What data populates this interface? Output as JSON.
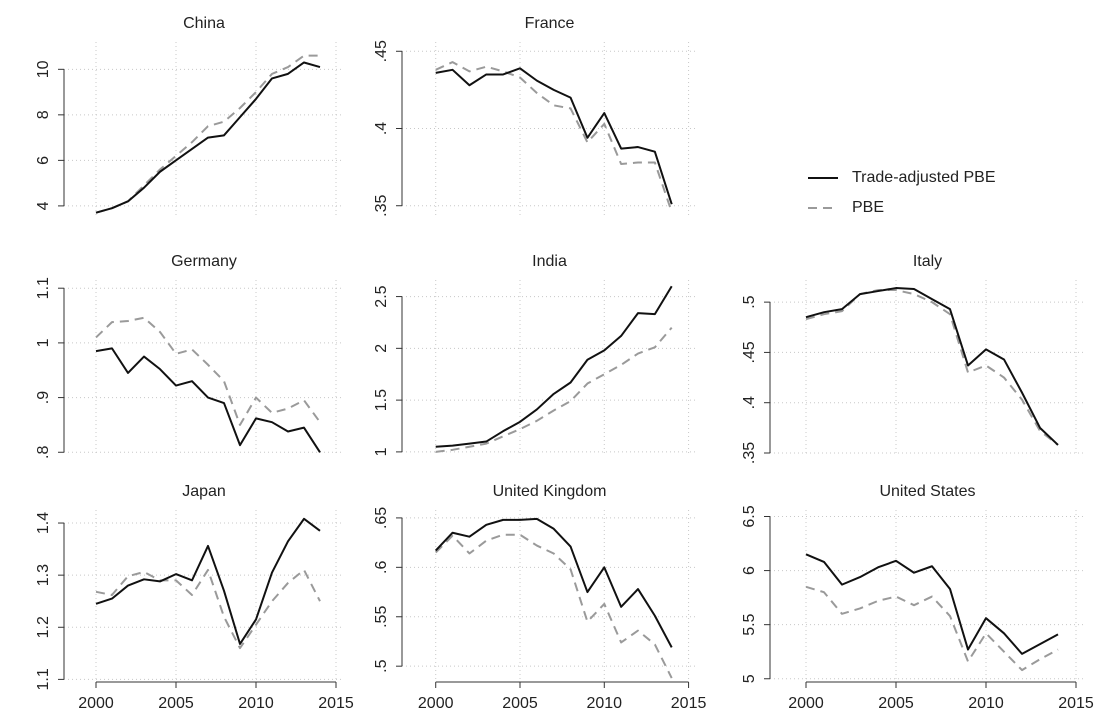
{
  "legend": {
    "entries": [
      {
        "name": "Trade-adjusted PBE",
        "color": "#111111",
        "dash": "none"
      },
      {
        "name": "PBE",
        "color": "#9a9a9a",
        "dash": "9 6"
      }
    ]
  },
  "chart_data": [
    {
      "type": "line",
      "title": "China",
      "x": [
        2000,
        2001,
        2002,
        2003,
        2004,
        2005,
        2006,
        2007,
        2008,
        2009,
        2010,
        2011,
        2012,
        2013,
        2014
      ],
      "xlim": [
        1998,
        2015.5
      ],
      "xticks": [
        2000,
        2005,
        2010,
        2015
      ],
      "ylim": [
        3.6,
        11.2
      ],
      "yticks": [
        4,
        6,
        8,
        10
      ],
      "grid": true,
      "series": [
        {
          "values": [
            3.7,
            3.9,
            4.2,
            4.8,
            5.5,
            6.0,
            6.5,
            7.0,
            7.1,
            7.9,
            8.7,
            9.6,
            9.8,
            10.3,
            10.1
          ]
        },
        {
          "values": [
            3.7,
            3.9,
            4.2,
            4.9,
            5.6,
            6.2,
            6.8,
            7.5,
            7.7,
            8.3,
            9.0,
            9.8,
            10.1,
            10.6,
            10.6
          ]
        }
      ]
    },
    {
      "type": "line",
      "title": "France",
      "x": [
        2000,
        2001,
        2002,
        2003,
        2004,
        2005,
        2006,
        2007,
        2008,
        2009,
        2010,
        2011,
        2012,
        2013,
        2014
      ],
      "xlim": [
        1998,
        2015.5
      ],
      "xticks": [
        2000,
        2005,
        2010,
        2015
      ],
      "ylim": [
        0.344,
        0.456
      ],
      "yticks": [
        {
          "value": 0.35,
          "label": ".35"
        },
        {
          "value": 0.4,
          "label": ".4"
        },
        {
          "value": 0.45,
          "label": ".45"
        }
      ],
      "grid": true,
      "series": [
        {
          "values": [
            0.436,
            0.438,
            0.428,
            0.435,
            0.435,
            0.439,
            0.431,
            0.425,
            0.42,
            0.394,
            0.41,
            0.387,
            0.388,
            0.385,
            0.351
          ]
        },
        {
          "values": [
            0.438,
            0.443,
            0.437,
            0.44,
            0.437,
            0.433,
            0.423,
            0.415,
            0.413,
            0.391,
            0.403,
            0.377,
            0.378,
            0.378,
            0.346
          ]
        }
      ]
    },
    {
      "type": "line",
      "title": "Germany",
      "x": [
        2000,
        2001,
        2002,
        2003,
        2004,
        2005,
        2006,
        2007,
        2008,
        2009,
        2010,
        2011,
        2012,
        2013,
        2014
      ],
      "xlim": [
        1998,
        2015.5
      ],
      "xticks": [
        2000,
        2005,
        2010,
        2015
      ],
      "ylim": [
        0.795,
        1.115
      ],
      "yticks": [
        {
          "value": 0.8,
          "label": ".8"
        },
        {
          "value": 0.9,
          "label": ".9"
        },
        1,
        1.1
      ],
      "grid": true,
      "series": [
        {
          "values": [
            0.985,
            0.99,
            0.945,
            0.975,
            0.952,
            0.922,
            0.93,
            0.9,
            0.89,
            0.813,
            0.862,
            0.855,
            0.838,
            0.845,
            0.8
          ]
        },
        {
          "values": [
            1.01,
            1.038,
            1.04,
            1.046,
            1.02,
            0.98,
            0.988,
            0.96,
            0.93,
            0.85,
            0.9,
            0.872,
            0.88,
            0.895,
            0.855
          ]
        }
      ]
    },
    {
      "type": "line",
      "title": "India",
      "x": [
        2000,
        2001,
        2002,
        2003,
        2004,
        2005,
        2006,
        2007,
        2008,
        2009,
        2010,
        2011,
        2012,
        2013,
        2014
      ],
      "xlim": [
        1998,
        2015.5
      ],
      "xticks": [
        2000,
        2005,
        2010,
        2015
      ],
      "ylim": [
        0.97,
        2.66
      ],
      "yticks": [
        1,
        1.5,
        2,
        2.5
      ],
      "grid": true,
      "series": [
        {
          "values": [
            1.05,
            1.06,
            1.08,
            1.1,
            1.2,
            1.29,
            1.41,
            1.56,
            1.67,
            1.89,
            1.98,
            2.12,
            2.34,
            2.33,
            2.6
          ]
        },
        {
          "values": [
            1.0,
            1.02,
            1.05,
            1.08,
            1.15,
            1.22,
            1.3,
            1.4,
            1.49,
            1.66,
            1.75,
            1.84,
            1.95,
            2.01,
            2.2
          ]
        }
      ]
    },
    {
      "type": "line",
      "title": "Italy",
      "x": [
        2000,
        2001,
        2002,
        2003,
        2004,
        2005,
        2006,
        2007,
        2008,
        2009,
        2010,
        2011,
        2012,
        2013,
        2014
      ],
      "xlim": [
        1998,
        2015.5
      ],
      "xticks": [
        2000,
        2005,
        2010,
        2015
      ],
      "ylim": [
        0.348,
        0.522
      ],
      "yticks": [
        {
          "value": 0.35,
          "label": ".35"
        },
        {
          "value": 0.4,
          "label": ".4"
        },
        {
          "value": 0.45,
          "label": ".45"
        },
        {
          "value": 0.5,
          "label": ".5"
        }
      ],
      "grid": true,
      "series": [
        {
          "values": [
            0.485,
            0.49,
            0.493,
            0.508,
            0.511,
            0.514,
            0.513,
            0.503,
            0.493,
            0.437,
            0.453,
            0.443,
            0.41,
            0.375,
            0.358
          ]
        },
        {
          "values": [
            0.483,
            0.488,
            0.491,
            0.508,
            0.512,
            0.512,
            0.508,
            0.5,
            0.488,
            0.43,
            0.437,
            0.425,
            0.403,
            0.372,
            0.358
          ]
        }
      ]
    },
    {
      "type": "line",
      "title": "Japan",
      "x": [
        2000,
        2001,
        2002,
        2003,
        2004,
        2005,
        2006,
        2007,
        2008,
        2009,
        2010,
        2011,
        2012,
        2013,
        2014
      ],
      "xlim": [
        1998,
        2015.5
      ],
      "xticks": [
        2000,
        2005,
        2010,
        2015
      ],
      "ylim": [
        1.095,
        1.425
      ],
      "yticks": [
        1.1,
        1.2,
        1.3,
        1.4
      ],
      "grid": true,
      "series": [
        {
          "values": [
            1.245,
            1.255,
            1.28,
            1.292,
            1.288,
            1.302,
            1.29,
            1.356,
            1.27,
            1.168,
            1.215,
            1.305,
            1.365,
            1.408,
            1.385
          ]
        },
        {
          "values": [
            1.268,
            1.262,
            1.298,
            1.306,
            1.29,
            1.29,
            1.262,
            1.31,
            1.22,
            1.16,
            1.205,
            1.25,
            1.285,
            1.31,
            1.25
          ]
        }
      ]
    },
    {
      "type": "line",
      "title": "United Kingdom",
      "x": [
        2000,
        2001,
        2002,
        2003,
        2004,
        2005,
        2006,
        2007,
        2008,
        2009,
        2010,
        2011,
        2012,
        2013,
        2014
      ],
      "xlim": [
        1998,
        2015.5
      ],
      "xticks": [
        2000,
        2005,
        2010,
        2015
      ],
      "ylim": [
        0.484,
        0.658
      ],
      "yticks": [
        {
          "value": 0.5,
          "label": ".5"
        },
        {
          "value": 0.55,
          "label": ".55"
        },
        {
          "value": 0.6,
          "label": ".6"
        },
        {
          "value": 0.65,
          "label": ".65"
        }
      ],
      "grid": true,
      "series": [
        {
          "values": [
            0.617,
            0.635,
            0.631,
            0.643,
            0.648,
            0.648,
            0.649,
            0.639,
            0.621,
            0.575,
            0.6,
            0.56,
            0.578,
            0.551,
            0.519
          ]
        },
        {
          "values": [
            0.615,
            0.632,
            0.614,
            0.627,
            0.633,
            0.633,
            0.622,
            0.614,
            0.598,
            0.545,
            0.563,
            0.524,
            0.536,
            0.522,
            0.488
          ]
        }
      ]
    },
    {
      "type": "line",
      "title": "United States",
      "x": [
        2000,
        2001,
        2002,
        2003,
        2004,
        2005,
        2006,
        2007,
        2008,
        2009,
        2010,
        2011,
        2012,
        2013,
        2014
      ],
      "xlim": [
        1998,
        2015.5
      ],
      "xticks": [
        2000,
        2005,
        2010,
        2015
      ],
      "ylim": [
        4.97,
        6.56
      ],
      "yticks": [
        5,
        5.5,
        6,
        6.5
      ],
      "grid": true,
      "series": [
        {
          "values": [
            6.15,
            6.08,
            5.87,
            5.94,
            6.03,
            6.09,
            5.98,
            6.04,
            5.83,
            5.27,
            5.56,
            5.42,
            5.23,
            5.32,
            5.41
          ]
        },
        {
          "values": [
            5.85,
            5.8,
            5.6,
            5.65,
            5.72,
            5.76,
            5.68,
            5.76,
            5.58,
            5.16,
            5.42,
            5.25,
            5.08,
            5.18,
            5.27
          ]
        }
      ]
    }
  ]
}
